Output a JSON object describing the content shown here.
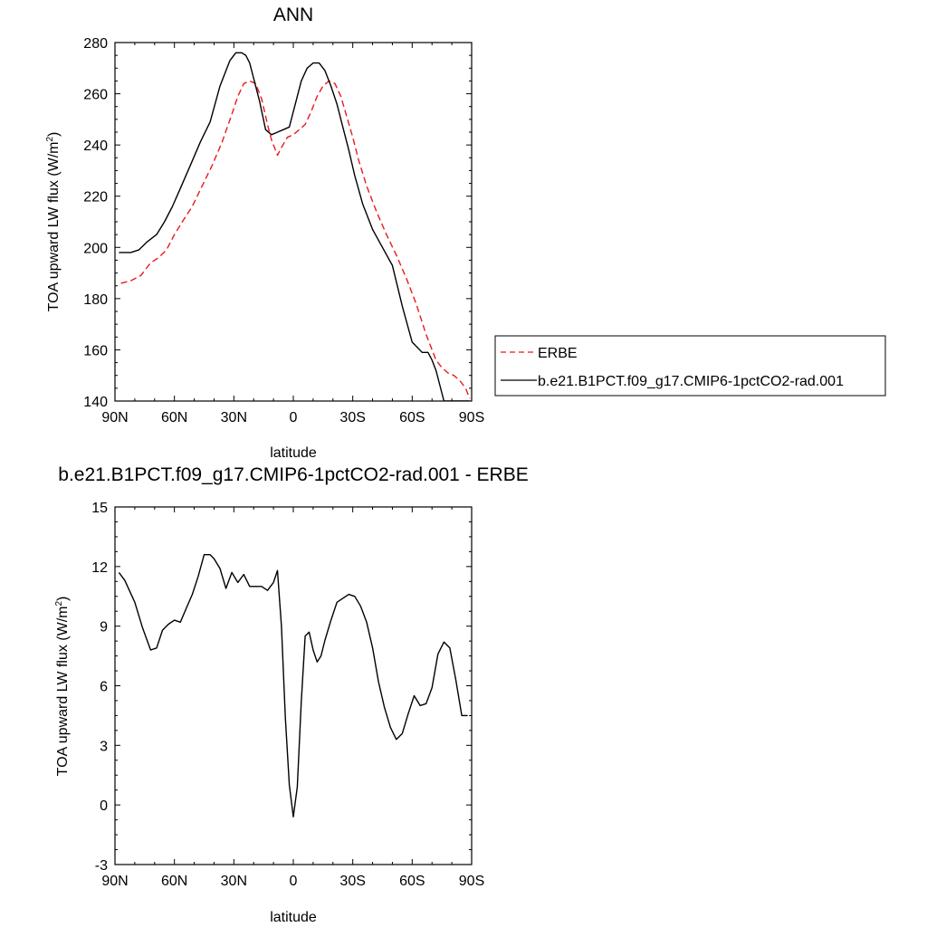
{
  "chart_data": [
    {
      "type": "line",
      "title": "ANN",
      "xlabel": "latitude",
      "ylabel": "TOA upward LW flux (W/m",
      "ylabel_sup": "2",
      "ylabel_end": ")",
      "xlim": [
        90,
        -90
      ],
      "ylim": [
        140,
        280
      ],
      "xticks": [
        90,
        60,
        30,
        0,
        -30,
        -60,
        -90
      ],
      "xtick_labels": [
        "90N",
        "60N",
        "30N",
        "0",
        "30S",
        "60S",
        "90S"
      ],
      "yticks": [
        140,
        160,
        180,
        200,
        220,
        240,
        260,
        280
      ],
      "ytick_labels": [
        "140",
        "160",
        "180",
        "200",
        "220",
        "240",
        "260",
        "280"
      ],
      "legend_position": "right",
      "series": [
        {
          "name": "ERBE",
          "color": "#e8191c",
          "dash": "dashed",
          "x": [
            87,
            82,
            77,
            72,
            68,
            64,
            60,
            56,
            51,
            46,
            41,
            36,
            31,
            28,
            25,
            22,
            19,
            16,
            13,
            11,
            8,
            6,
            3,
            0,
            -3,
            -6,
            -9,
            -12,
            -15,
            -18,
            -21,
            -24,
            -27,
            -30,
            -33,
            -37,
            -42,
            -47,
            -52,
            -57,
            -62,
            -67,
            -72,
            -75,
            -78,
            -81,
            -84,
            -87,
            -89
          ],
          "y": [
            186,
            187,
            189,
            194,
            196,
            199,
            205,
            210,
            216,
            224,
            232,
            241,
            252,
            259,
            264,
            265,
            264,
            258,
            248,
            242,
            236,
            239,
            243,
            244,
            246,
            248,
            253,
            259,
            263,
            265,
            264,
            259,
            251,
            243,
            234,
            224,
            214,
            205,
            197,
            188,
            178,
            166,
            156,
            153,
            151,
            150,
            148,
            145,
            141
          ]
        },
        {
          "name": "b.e21.B1PCT.f09_g17.CMIP6-1pctCO2-rad.001",
          "color": "#000000",
          "dash": "solid",
          "x": [
            88,
            82,
            78,
            74,
            69,
            65,
            61,
            57,
            52,
            47,
            42,
            37,
            32,
            29,
            26,
            24,
            22,
            20,
            17,
            14,
            11,
            8,
            5,
            2,
            -1,
            -4,
            -7,
            -10,
            -13,
            -16,
            -19,
            -22,
            -25,
            -28,
            -31,
            -35,
            -40,
            -45,
            -50,
            -55,
            -60,
            -65,
            -68,
            -70,
            -72,
            -74,
            -76,
            -79,
            -81,
            -84,
            -87,
            -89
          ],
          "y": [
            198,
            198,
            199,
            202,
            205,
            210,
            216,
            223,
            232,
            241,
            249,
            263,
            273,
            276,
            276,
            275,
            272,
            266,
            257,
            246,
            244,
            245,
            246,
            247,
            256,
            265,
            270,
            272,
            272,
            269,
            263,
            256,
            247,
            238,
            228,
            217,
            207,
            200,
            193,
            177,
            163,
            159,
            159,
            156,
            152,
            146,
            140,
            140,
            140,
            140,
            140,
            140
          ]
        }
      ]
    },
    {
      "type": "line",
      "title": "b.e21.B1PCT.f09_g17.CMIP6-1pctCO2-rad.001 - ERBE",
      "xlabel": "latitude",
      "ylabel": "TOA upward LW flux (W/m",
      "ylabel_sup": "2",
      "ylabel_end": ")",
      "xlim": [
        90,
        -90
      ],
      "ylim": [
        -3,
        15
      ],
      "xticks": [
        90,
        60,
        30,
        0,
        -30,
        -60,
        -90
      ],
      "xtick_labels": [
        "90N",
        "60N",
        "30N",
        "0",
        "30S",
        "60S",
        "90S"
      ],
      "yticks": [
        -3,
        0,
        3,
        6,
        9,
        12,
        15
      ],
      "ytick_labels": [
        "-3",
        "0",
        "3",
        "6",
        "9",
        "12",
        "15"
      ],
      "series": [
        {
          "color": "#000000",
          "x": [
            88,
            85,
            80,
            76,
            72,
            69,
            66,
            63,
            60,
            57,
            54,
            51,
            48,
            45,
            42,
            40,
            37,
            34,
            31,
            28,
            25,
            22,
            19,
            16,
            13,
            10,
            8,
            6,
            4,
            2,
            0,
            -2,
            -4,
            -6,
            -8,
            -10,
            -12,
            -14,
            -16,
            -19,
            -22,
            -25,
            -28,
            -31,
            -34,
            -37,
            -40,
            -43,
            -46,
            -49,
            -52,
            -55,
            -58,
            -61,
            -64,
            -67,
            -70,
            -73,
            -76,
            -79,
            -82,
            -85,
            -88
          ],
          "y": [
            11.7,
            11.3,
            10.2,
            8.9,
            7.8,
            7.9,
            8.8,
            9.1,
            9.3,
            9.2,
            9.9,
            10.6,
            11.5,
            12.6,
            12.6,
            12.4,
            11.9,
            10.9,
            11.7,
            11.2,
            11.6,
            11.0,
            11.0,
            11.0,
            10.8,
            11.2,
            11.8,
            9.0,
            4.4,
            1.0,
            -0.6,
            0.9,
            5.2,
            8.5,
            8.7,
            7.8,
            7.2,
            7.5,
            8.3,
            9.3,
            10.2,
            10.4,
            10.6,
            10.5,
            10.0,
            9.2,
            7.9,
            6.2,
            4.9,
            3.9,
            3.3,
            3.6,
            4.6,
            5.5,
            5.0,
            5.1,
            5.9,
            7.6,
            8.2,
            7.9,
            6.3,
            4.5,
            4.5
          ]
        }
      ]
    }
  ]
}
